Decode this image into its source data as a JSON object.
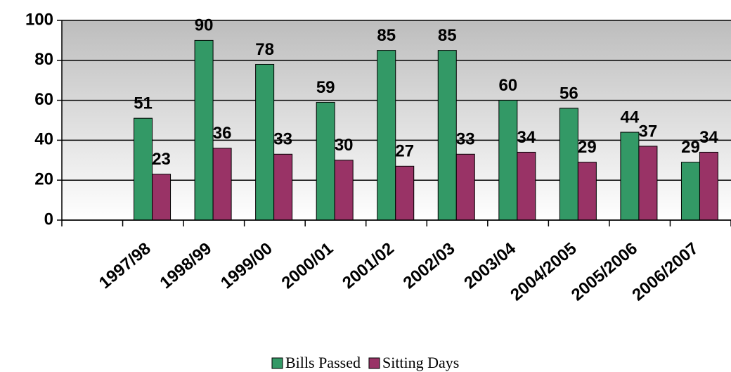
{
  "chart_data": {
    "type": "bar",
    "categories": [
      null,
      "1997/98",
      "1998/99",
      "1999/00",
      "2000/01",
      "2001/02",
      "2002/03",
      "2003/04",
      "2004/2005",
      "2005/2006",
      "2006/2007"
    ],
    "series": [
      {
        "name": "Bills Passed",
        "color": "#339966",
        "values": [
          null,
          51,
          90,
          78,
          59,
          85,
          85,
          60,
          56,
          44,
          29
        ]
      },
      {
        "name": "Sitting Days",
        "color": "#993366",
        "values": [
          null,
          23,
          36,
          33,
          30,
          27,
          33,
          34,
          29,
          37,
          34
        ]
      }
    ],
    "ylim": [
      0,
      100
    ],
    "yticks": [
      0,
      20,
      40,
      60,
      80,
      100
    ],
    "grid": true
  }
}
